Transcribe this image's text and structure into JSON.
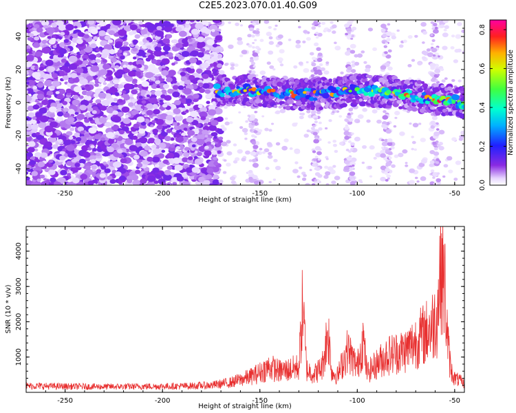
{
  "title": "C2E5.2023.070.01.40.G09",
  "chart_data": [
    {
      "type": "heatmap",
      "xlabel": "Height of straight line (km)",
      "ylabel": "Frequency (Hz)",
      "xlim": [
        -270,
        -45
      ],
      "ylim": [
        -50,
        50
      ],
      "xticks": [
        -250,
        -200,
        -150,
        -100,
        -50
      ],
      "yticks": [
        -40,
        -20,
        0,
        20,
        40
      ],
      "colorbar": {
        "label": "Normalized spectral amplitude",
        "range": [
          0,
          0.85
        ],
        "ticks": [
          0.0,
          0.2,
          0.4,
          0.6,
          0.8
        ]
      },
      "ridge": {
        "x": [
          -172,
          -160,
          -150,
          -140,
          -130,
          -120,
          -110,
          -100,
          -90,
          -80,
          -70,
          -60,
          -50,
          -45
        ],
        "y": [
          7,
          8,
          7,
          6,
          5,
          5,
          6,
          8,
          7,
          6,
          4,
          2,
          1,
          0
        ]
      },
      "grid": false
    },
    {
      "type": "line",
      "xlabel": "Height of straight line (km)",
      "ylabel": "SNR (10 * v/v)",
      "xlim": [
        -270,
        -45
      ],
      "ylim": [
        0,
        4700
      ],
      "xticks": [
        -250,
        -200,
        -150,
        -100,
        -50
      ],
      "yticks": [
        1000,
        2000,
        3000,
        4000
      ],
      "color": "#e83030",
      "series": [
        {
          "x": [
            -270,
            -250,
            -230,
            -210,
            -190,
            -175,
            -165,
            -160,
            -155,
            -150,
            -145,
            -140,
            -135,
            -130,
            -128,
            -126,
            -122,
            -118,
            -115,
            -113,
            -110,
            -105,
            -100,
            -97,
            -95,
            -90,
            -85,
            -80,
            -75,
            -70,
            -65,
            -62,
            -59,
            -57,
            -55,
            -54,
            -53,
            -52,
            -50,
            -47,
            -45
          ],
          "y": [
            230,
            210,
            200,
            210,
            220,
            250,
            350,
            450,
            550,
            700,
            900,
            750,
            800,
            900,
            3100,
            800,
            650,
            900,
            2200,
            700,
            600,
            1500,
            900,
            1900,
            700,
            1000,
            1300,
            1400,
            1500,
            1800,
            2100,
            2300,
            2700,
            4700,
            3700,
            2300,
            1400,
            800,
            500,
            400,
            300
          ]
        }
      ],
      "grid": false
    }
  ]
}
